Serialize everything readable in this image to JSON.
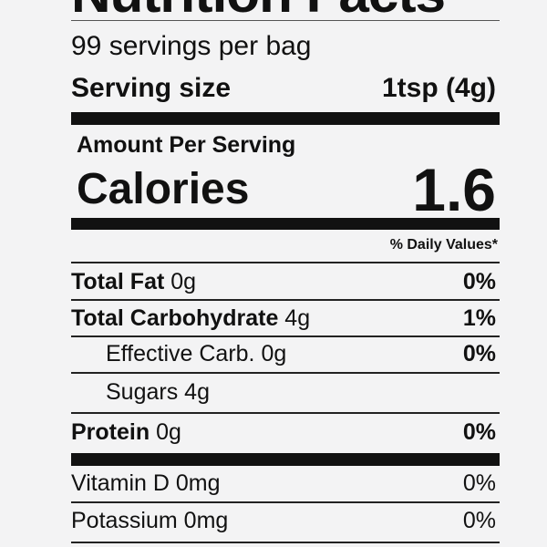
{
  "label": {
    "title": "Nutrition Facts",
    "servings": "99 servings per bag",
    "serving_size_label": "Serving size",
    "serving_size_value": "1tsp (4g)",
    "amount_per_serving": "Amount Per Serving",
    "calories_label": "Calories",
    "calories_value": "1.6",
    "daily_values_header": "% Daily Values*",
    "nutrients": [
      {
        "name": "Total Fat",
        "amount": "0g",
        "pct": "0%"
      },
      {
        "name": "Total Carbohydrate",
        "amount": "4g",
        "pct": "1%"
      },
      {
        "name": "Effective Carb.",
        "amount": "0g",
        "pct": "0%"
      },
      {
        "name": "Sugars",
        "amount": "4g",
        "pct": ""
      },
      {
        "name": "Protein",
        "amount": "0g",
        "pct": "0%"
      }
    ],
    "vitamins": [
      {
        "name": "Vitamin D",
        "amount": "0mg",
        "pct": "0%"
      },
      {
        "name": "Potassium",
        "amount": "0mg",
        "pct": "0%"
      }
    ]
  }
}
